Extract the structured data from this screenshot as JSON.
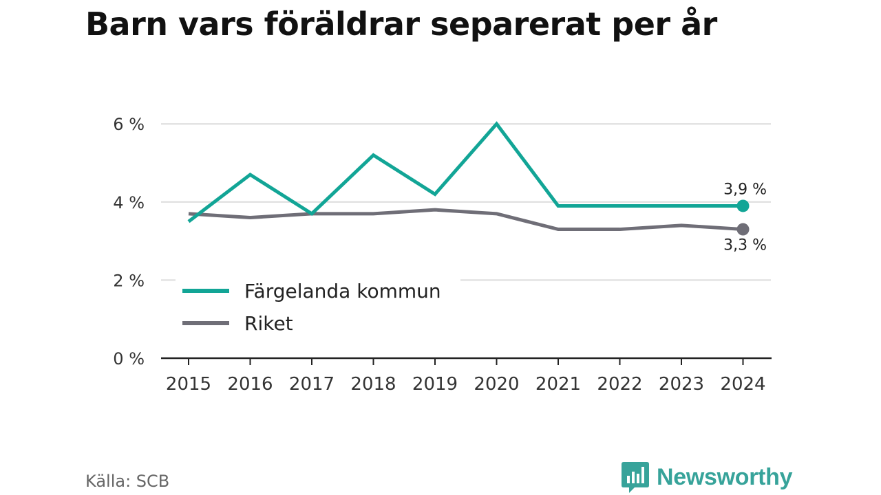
{
  "title": "Barn vars föräldrar separerat per år",
  "source": "Källa: SCB",
  "brand": {
    "name": "Newsworthy",
    "color": "#37a39a",
    "icon": "bar-chart-speech-bubble-icon"
  },
  "chart_data": {
    "type": "line",
    "title": "Barn vars föräldrar separerat per år",
    "categories": [
      "2015",
      "2016",
      "2017",
      "2018",
      "2019",
      "2020",
      "2021",
      "2022",
      "2023",
      "2024"
    ],
    "ylim": [
      0,
      6
    ],
    "yticks": [
      0,
      2,
      4,
      6
    ],
    "ytick_labels": [
      "0 %",
      "2 %",
      "4 %",
      "6 %"
    ],
    "grid": true,
    "legend": "bottom-left",
    "series": [
      {
        "name": "Färgelanda kommun",
        "color": "#12a596",
        "values": [
          3.5,
          4.7,
          3.7,
          5.2,
          4.2,
          6.0,
          3.9,
          3.9,
          3.9,
          3.9
        ],
        "end_label": "3,9 %"
      },
      {
        "name": "Riket",
        "color": "#6f6e77",
        "values": [
          3.7,
          3.6,
          3.7,
          3.7,
          3.8,
          3.7,
          3.3,
          3.3,
          3.4,
          3.3
        ],
        "end_label": "3,3 %"
      }
    ]
  }
}
